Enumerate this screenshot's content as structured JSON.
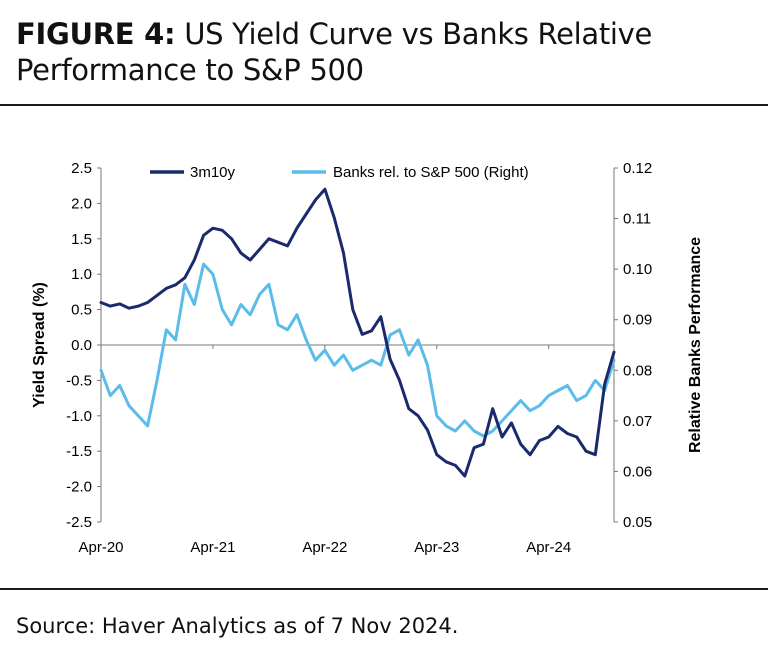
{
  "header": {
    "title_label": "FIGURE 4:",
    "title_text": "US Yield Curve vs Banks Relative Performance to S&P 500"
  },
  "footer": {
    "source": "Source: Haver Analytics as of 7 Nov 2024."
  },
  "colors": {
    "series_3m10y": "#1a2a6c",
    "series_banks": "#5bbcea",
    "axis": "#777777"
  },
  "chart_data": {
    "type": "line",
    "title": "",
    "xlabel": "",
    "ylabel": "Yield Spread (%)",
    "y2label": "Relative Banks Performance",
    "ylim": [
      -2.5,
      2.5
    ],
    "y2lim": [
      0.05,
      0.12
    ],
    "y_ticks": [
      "2.5",
      "2.0",
      "1.5",
      "1.0",
      "0.5",
      "0.0",
      "-0.5",
      "-1.0",
      "-1.5",
      "-2.0",
      "-2.5"
    ],
    "y_tick_values": [
      2.5,
      2.0,
      1.5,
      1.0,
      0.5,
      0.0,
      -0.5,
      -1.0,
      -1.5,
      -2.0,
      -2.5
    ],
    "y2_ticks": [
      "0.12",
      "0.11",
      "0.10",
      "0.09",
      "0.08",
      "0.07",
      "0.06",
      "0.05"
    ],
    "y2_tick_values": [
      0.12,
      0.11,
      0.1,
      0.09,
      0.08,
      0.07,
      0.06,
      0.05
    ],
    "x_ticks": [
      "Apr-20",
      "Apr-21",
      "Apr-22",
      "Apr-23",
      "Apr-24"
    ],
    "x_tick_values": [
      "2020-04",
      "2021-04",
      "2022-04",
      "2023-04",
      "2024-04"
    ],
    "legend_position": "top",
    "grid": false,
    "series": [
      {
        "name": "3m10y",
        "axis": "left",
        "x": [
          "2020-04",
          "2020-05",
          "2020-06",
          "2020-07",
          "2020-08",
          "2020-09",
          "2020-10",
          "2020-11",
          "2020-12",
          "2021-01",
          "2021-02",
          "2021-03",
          "2021-04",
          "2021-05",
          "2021-06",
          "2021-07",
          "2021-08",
          "2021-09",
          "2021-10",
          "2021-11",
          "2021-12",
          "2022-01",
          "2022-02",
          "2022-03",
          "2022-04",
          "2022-05",
          "2022-06",
          "2022-07",
          "2022-08",
          "2022-09",
          "2022-10",
          "2022-11",
          "2022-12",
          "2023-01",
          "2023-02",
          "2023-03",
          "2023-04",
          "2023-05",
          "2023-06",
          "2023-07",
          "2023-08",
          "2023-09",
          "2023-10",
          "2023-11",
          "2023-12",
          "2024-01",
          "2024-02",
          "2024-03",
          "2024-04",
          "2024-05",
          "2024-06",
          "2024-07",
          "2024-08",
          "2024-09",
          "2024-10",
          "2024-11"
        ],
        "values": [
          0.6,
          0.55,
          0.58,
          0.52,
          0.55,
          0.6,
          0.7,
          0.8,
          0.85,
          0.95,
          1.2,
          1.55,
          1.65,
          1.62,
          1.5,
          1.3,
          1.2,
          1.35,
          1.5,
          1.45,
          1.4,
          1.65,
          1.85,
          2.05,
          2.2,
          1.8,
          1.3,
          0.5,
          0.15,
          0.2,
          0.4,
          -0.2,
          -0.5,
          -0.9,
          -1.0,
          -1.2,
          -1.55,
          -1.65,
          -1.7,
          -1.85,
          -1.45,
          -1.4,
          -0.9,
          -1.3,
          -1.1,
          -1.4,
          -1.55,
          -1.35,
          -1.3,
          -1.15,
          -1.25,
          -1.3,
          -1.5,
          -1.55,
          -0.55,
          -0.1
        ]
      },
      {
        "name": "Banks rel. to S&P 500 (Right)",
        "axis": "right",
        "x": [
          "2020-04",
          "2020-05",
          "2020-06",
          "2020-07",
          "2020-08",
          "2020-09",
          "2020-10",
          "2020-11",
          "2020-12",
          "2021-01",
          "2021-02",
          "2021-03",
          "2021-04",
          "2021-05",
          "2021-06",
          "2021-07",
          "2021-08",
          "2021-09",
          "2021-10",
          "2021-11",
          "2021-12",
          "2022-01",
          "2022-02",
          "2022-03",
          "2022-04",
          "2022-05",
          "2022-06",
          "2022-07",
          "2022-08",
          "2022-09",
          "2022-10",
          "2022-11",
          "2022-12",
          "2023-01",
          "2023-02",
          "2023-03",
          "2023-04",
          "2023-05",
          "2023-06",
          "2023-07",
          "2023-08",
          "2023-09",
          "2023-10",
          "2023-11",
          "2023-12",
          "2024-01",
          "2024-02",
          "2024-03",
          "2024-04",
          "2024-05",
          "2024-06",
          "2024-07",
          "2024-08",
          "2024-09",
          "2024-10",
          "2024-11"
        ],
        "values": [
          0.08,
          0.075,
          0.077,
          0.073,
          0.071,
          0.069,
          0.078,
          0.088,
          0.086,
          0.097,
          0.093,
          0.101,
          0.099,
          0.092,
          0.089,
          0.093,
          0.091,
          0.095,
          0.097,
          0.089,
          0.088,
          0.091,
          0.086,
          0.082,
          0.084,
          0.081,
          0.083,
          0.08,
          0.081,
          0.082,
          0.081,
          0.087,
          0.088,
          0.083,
          0.086,
          0.081,
          0.071,
          0.069,
          0.068,
          0.07,
          0.068,
          0.067,
          0.068,
          0.07,
          0.072,
          0.074,
          0.072,
          0.073,
          0.075,
          0.076,
          0.077,
          0.074,
          0.075,
          0.078,
          0.076,
          0.082
        ]
      }
    ]
  }
}
